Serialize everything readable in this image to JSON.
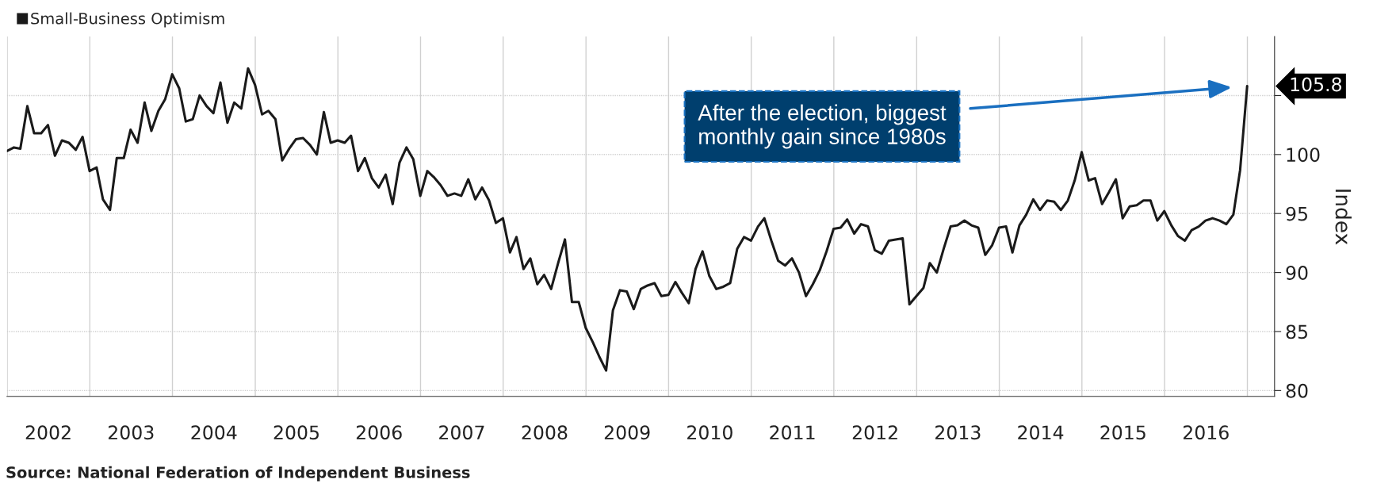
{
  "chart_data": {
    "type": "line",
    "x": [
      "2001-12-31",
      "2002-01-31",
      "2002-02-28",
      "2002-03-31",
      "2002-04-30",
      "2002-05-31",
      "2002-06-30",
      "2002-07-31",
      "2002-08-31",
      "2002-09-30",
      "2002-10-31",
      "2002-11-30",
      "2002-12-31",
      "2003-01-31",
      "2003-02-28",
      "2003-03-31",
      "2003-04-30",
      "2003-05-31",
      "2003-06-30",
      "2003-07-31",
      "2003-08-31",
      "2003-09-30",
      "2003-10-31",
      "2003-11-30",
      "2003-12-31",
      "2004-01-31",
      "2004-02-29",
      "2004-03-31",
      "2004-04-30",
      "2004-05-31",
      "2004-06-30",
      "2004-07-31",
      "2004-08-31",
      "2004-09-30",
      "2004-10-31",
      "2004-11-30",
      "2004-12-31",
      "2005-01-31",
      "2005-02-28",
      "2005-03-31",
      "2005-04-30",
      "2005-05-31",
      "2005-06-30",
      "2005-07-31",
      "2005-08-31",
      "2005-09-30",
      "2005-10-31",
      "2005-11-30",
      "2005-12-31",
      "2006-01-31",
      "2006-02-28",
      "2006-03-31",
      "2006-04-30",
      "2006-05-31",
      "2006-06-30",
      "2006-07-31",
      "2006-08-31",
      "2006-09-30",
      "2006-10-31",
      "2006-11-30",
      "2006-12-31",
      "2007-01-31",
      "2007-02-28",
      "2007-03-31",
      "2007-04-30",
      "2007-05-31",
      "2007-06-30",
      "2007-07-31",
      "2007-08-31",
      "2007-09-30",
      "2007-10-31",
      "2007-11-30",
      "2007-12-31",
      "2008-01-31",
      "2008-02-29",
      "2008-03-31",
      "2008-04-30",
      "2008-05-31",
      "2008-06-30",
      "2008-07-31",
      "2008-08-31",
      "2008-09-30",
      "2008-10-31",
      "2008-11-30",
      "2008-12-31",
      "2009-01-31",
      "2009-02-28",
      "2009-03-31",
      "2009-04-30",
      "2009-05-31",
      "2009-06-30",
      "2009-07-31",
      "2009-08-31",
      "2009-09-30",
      "2009-10-31",
      "2009-11-30",
      "2009-12-31",
      "2010-01-31",
      "2010-02-28",
      "2010-03-31",
      "2010-04-30",
      "2010-05-31",
      "2010-06-30",
      "2010-07-31",
      "2010-08-31",
      "2010-09-30",
      "2010-10-31",
      "2010-11-30",
      "2010-12-31",
      "2011-01-31",
      "2011-02-28",
      "2011-03-31",
      "2011-04-30",
      "2011-05-31",
      "2011-06-30",
      "2011-07-31",
      "2011-08-31",
      "2011-09-30",
      "2011-10-31",
      "2011-11-30",
      "2011-12-31",
      "2012-01-31",
      "2012-02-29",
      "2012-03-31",
      "2012-04-30",
      "2012-05-31",
      "2012-06-30",
      "2012-07-31",
      "2012-08-31",
      "2012-09-30",
      "2012-10-31",
      "2012-11-30",
      "2012-12-31",
      "2013-01-31",
      "2013-02-28",
      "2013-03-31",
      "2013-04-30",
      "2013-05-31",
      "2013-06-30",
      "2013-07-31",
      "2013-08-31",
      "2013-09-30",
      "2013-10-31",
      "2013-11-30",
      "2013-12-31",
      "2014-01-31",
      "2014-02-28",
      "2014-03-31",
      "2014-04-30",
      "2014-05-31",
      "2014-06-30",
      "2014-07-31",
      "2014-08-31",
      "2014-09-30",
      "2014-10-31",
      "2014-11-30",
      "2014-12-31",
      "2015-01-31",
      "2015-02-28",
      "2015-03-31",
      "2015-04-30",
      "2015-05-31",
      "2015-06-30",
      "2015-07-31",
      "2015-08-31",
      "2015-09-30",
      "2015-10-31",
      "2015-11-30",
      "2015-12-31",
      "2016-01-31",
      "2016-02-29",
      "2016-03-31",
      "2016-04-30",
      "2016-05-31",
      "2016-06-30",
      "2016-07-31",
      "2016-08-31",
      "2016-09-30",
      "2016-10-31",
      "2016-11-30",
      "2016-12-31"
    ],
    "series": [
      {
        "name": "Small-Business Optimism",
        "color": "#1a1a1a",
        "values": [
          100.3,
          100.6,
          100.5,
          104.1,
          101.8,
          101.8,
          102.5,
          99.9,
          101.2,
          101.0,
          100.4,
          101.5,
          98.6,
          98.9,
          96.2,
          95.3,
          99.7,
          99.7,
          102.1,
          101.0,
          104.4,
          102.0,
          103.7,
          104.7,
          106.8,
          105.6,
          102.8,
          103.0,
          105.0,
          104.1,
          103.5,
          106.1,
          102.7,
          104.4,
          103.9,
          107.3,
          105.9,
          103.4,
          103.7,
          103.0,
          99.5,
          100.5,
          101.3,
          101.4,
          100.8,
          100.0,
          103.6,
          101.0,
          101.2,
          101.0,
          101.6,
          98.6,
          99.7,
          98.0,
          97.2,
          98.3,
          95.8,
          99.3,
          100.6,
          99.6,
          96.5,
          98.6,
          98.1,
          97.4,
          96.5,
          96.7,
          96.5,
          97.9,
          96.2,
          97.2,
          96.1,
          94.2,
          94.6,
          91.7,
          93.0,
          90.3,
          91.2,
          89.0,
          89.8,
          88.6,
          90.8,
          92.8,
          87.5,
          87.5,
          85.3,
          84.1,
          82.9,
          81.7,
          86.8,
          88.5,
          88.4,
          86.9,
          88.6,
          88.9,
          89.1,
          88.0,
          88.1,
          89.2,
          88.3,
          87.4,
          90.3,
          91.8,
          89.7,
          88.6,
          88.8,
          89.1,
          92.0,
          93.0,
          92.7,
          93.9,
          94.6,
          92.7,
          91.0,
          90.6,
          91.2,
          90.0,
          88.0,
          89.0,
          90.2,
          91.8,
          93.7,
          93.8,
          94.5,
          93.3,
          94.1,
          93.9,
          91.9,
          91.6,
          92.7,
          92.8,
          92.9,
          87.3,
          88.0,
          88.7,
          90.8,
          90.0,
          92.0,
          93.9,
          94.0,
          94.4,
          94.0,
          93.8,
          91.5,
          92.3,
          93.8,
          93.9,
          91.7,
          94.0,
          94.9,
          96.2,
          95.3,
          96.1,
          96.0,
          95.3,
          96.1,
          97.8,
          100.2,
          97.8,
          98.0,
          95.8,
          96.8,
          97.9,
          94.6,
          95.6,
          95.7,
          96.1,
          96.1,
          94.4,
          95.2,
          94.0,
          93.1,
          92.7,
          93.6,
          93.9,
          94.4,
          94.6,
          94.4,
          94.1,
          94.9,
          98.7,
          105.8
        ]
      }
    ],
    "xlim": [
      "2001-12-31",
      "2017-05-01"
    ],
    "xticks": [
      {
        "value": "2002-01-01",
        "label": null
      },
      {
        "value": "2002-07-02",
        "label": "2002"
      },
      {
        "value": "2003-01-01",
        "label": null
      },
      {
        "value": "2003-07-02",
        "label": "2003"
      },
      {
        "value": "2004-01-01",
        "label": null
      },
      {
        "value": "2004-07-02",
        "label": "2004"
      },
      {
        "value": "2005-01-01",
        "label": null
      },
      {
        "value": "2005-07-02",
        "label": "2005"
      },
      {
        "value": "2006-01-01",
        "label": null
      },
      {
        "value": "2006-07-02",
        "label": "2006"
      },
      {
        "value": "2007-01-01",
        "label": null
      },
      {
        "value": "2007-07-02",
        "label": "2007"
      },
      {
        "value": "2008-01-01",
        "label": null
      },
      {
        "value": "2008-07-02",
        "label": "2008"
      },
      {
        "value": "2009-01-01",
        "label": null
      },
      {
        "value": "2009-07-02",
        "label": "2009"
      },
      {
        "value": "2010-01-01",
        "label": null
      },
      {
        "value": "2010-07-02",
        "label": "2010"
      },
      {
        "value": "2011-01-01",
        "label": null
      },
      {
        "value": "2011-07-02",
        "label": "2011"
      },
      {
        "value": "2012-01-01",
        "label": null
      },
      {
        "value": "2012-07-02",
        "label": "2012"
      },
      {
        "value": "2013-01-01",
        "label": null
      },
      {
        "value": "2013-07-02",
        "label": "2013"
      },
      {
        "value": "2014-01-01",
        "label": null
      },
      {
        "value": "2014-07-02",
        "label": "2014"
      },
      {
        "value": "2015-01-01",
        "label": null
      },
      {
        "value": "2015-07-02",
        "label": "2015"
      },
      {
        "value": "2016-01-01",
        "label": null
      },
      {
        "value": "2016-07-02",
        "label": "2016"
      },
      {
        "value": "2017-01-01",
        "label": null
      }
    ],
    "ylim": [
      79.5,
      110
    ],
    "yticks": [
      80,
      85,
      90,
      95,
      100,
      {
        "value": 105,
        "label": null
      }
    ],
    "ylabel": "Index",
    "grid": true,
    "legend": "top left",
    "annotations": [
      "After the election, biggest monthly gain since 1980s",
      {
        "text": "105.8",
        "x": "2016-12-31",
        "y": 105.8
      },
      "Source: National Federation of Independent Business"
    ]
  }
}
